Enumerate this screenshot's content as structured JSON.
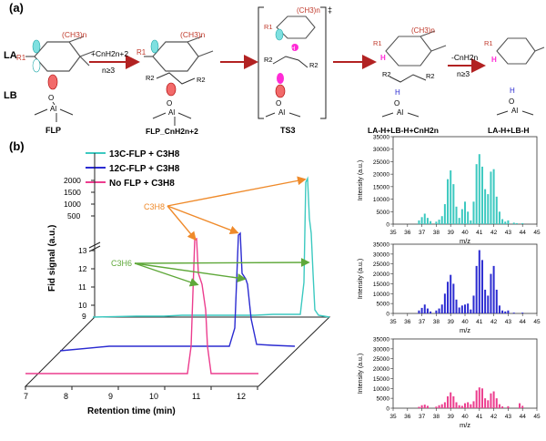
{
  "panel_a": {
    "label": "(a)",
    "row_labels": {
      "la": "LA",
      "lb": "LB"
    },
    "ring_substituent": "(CH3)n",
    "r1": "R1",
    "arrows": {
      "step1_top": "+CnH2n+2",
      "step1_bottom": "n≥3",
      "step4_top": "-CnH2n",
      "step4_bottom": "n≥3"
    },
    "species_labels": {
      "s1": "FLP",
      "s2": "FLP_CnH2n+2",
      "s3": "TS3",
      "s4": "LA-H+LB-H+CnH2n",
      "s5": "LA-H+LB-H"
    },
    "ts_dagger": "‡",
    "atoms": {
      "al": "Al",
      "o": "O",
      "h": "H",
      "c": "C",
      "r2": "R2",
      "plus": "⊕",
      "minus": "⊖"
    }
  },
  "panel_b": {
    "label": "(b)",
    "gc": {
      "legend": [
        {
          "text": "13C-FLP + C3H8",
          "color": "#3cc9c0"
        },
        {
          "text": "12C-FLP + C3H8",
          "color": "#2b2bd1"
        },
        {
          "text": "No FLP + C3H8",
          "color": "#ec3d8e"
        }
      ],
      "ylabel": "Fid signal (a.u.)",
      "xlabel": "Retention time (min)",
      "y_ticks_upper": [
        "2000",
        "1500",
        "1000",
        "500"
      ],
      "y_ticks_lower": [
        "13",
        "12",
        "11",
        "10",
        "9"
      ],
      "x_ticks": [
        "7",
        "8",
        "9",
        "10",
        "11",
        "12"
      ],
      "annotations": {
        "propane": "C3H8",
        "propene": "C3H6"
      },
      "annotation_colors": {
        "propane": "#ef8a2a",
        "propene": "#5fa83a"
      }
    },
    "chart_data": [
      {
        "type": "bar",
        "series": [
          {
            "name": "13C-FLP + C3H8",
            "color": "#3cc9c0",
            "x": [
              36.8,
              37.0,
              37.2,
              37.4,
              37.6,
              38.0,
              38.2,
              38.4,
              38.6,
              38.8,
              39.0,
              39.2,
              39.4,
              39.6,
              39.8,
              40.0,
              40.2,
              40.4,
              40.6,
              40.8,
              41.0,
              41.2,
              41.4,
              41.6,
              41.8,
              42.0,
              42.2,
              42.4,
              42.6,
              42.8,
              43.0,
              43.4,
              43.6,
              44.0
            ],
            "y": [
              1500,
              2800,
              4200,
              2500,
              1200,
              1000,
              1800,
              3200,
              8000,
              18000,
              21500,
              16000,
              7000,
              2500,
              6000,
              9000,
              5000,
              1500,
              9000,
              24000,
              28000,
              23000,
              14000,
              12000,
              21000,
              22000,
              11000,
              5000,
              2000,
              1000,
              1500,
              600,
              400,
              400
            ]
          }
        ],
        "x_ticks": [
          35,
          36,
          37,
          38,
          39,
          40,
          41,
          42,
          43,
          44,
          45
        ],
        "y_ticks": [
          0,
          5000,
          10000,
          15000,
          20000,
          25000,
          30000,
          35000
        ],
        "xlabel": "m/z",
        "ylabel": "Intensity (a.u.)",
        "xlim": [
          35,
          45
        ],
        "ylim": [
          0,
          35000
        ]
      },
      {
        "type": "bar",
        "series": [
          {
            "name": "12C-FLP + C3H8",
            "color": "#2b2bd1",
            "x": [
              36.8,
              37.0,
              37.2,
              37.4,
              37.6,
              38.0,
              38.2,
              38.4,
              38.6,
              38.8,
              39.0,
              39.2,
              39.4,
              39.6,
              39.8,
              40.0,
              40.2,
              40.4,
              40.6,
              40.8,
              41.0,
              41.2,
              41.4,
              41.6,
              41.8,
              42.0,
              42.2,
              42.4,
              42.6,
              42.8,
              43.0,
              43.4,
              44.0
            ],
            "y": [
              1500,
              2800,
              4500,
              2500,
              1000,
              1500,
              2500,
              4500,
              10000,
              16000,
              19500,
              15000,
              7000,
              3000,
              4000,
              4500,
              5000,
              2000,
              9000,
              24000,
              32000,
              27000,
              12000,
              9000,
              20000,
              24000,
              12000,
              4000,
              1500,
              1000,
              1500,
              400,
              400
            ]
          }
        ],
        "x_ticks": [
          35,
          36,
          37,
          38,
          39,
          40,
          41,
          42,
          43,
          44,
          45
        ],
        "y_ticks": [
          0,
          5000,
          10000,
          15000,
          20000,
          25000,
          30000,
          35000
        ],
        "xlabel": "m/z",
        "ylabel": "Intensity (a.u.)",
        "xlim": [
          35,
          45
        ],
        "ylim": [
          0,
          35000
        ]
      },
      {
        "type": "bar",
        "series": [
          {
            "name": "No FLP + C3H8",
            "color": "#ec3d8e",
            "x": [
              36.8,
              37.0,
              37.2,
              37.4,
              38.0,
              38.2,
              38.4,
              38.6,
              38.8,
              39.0,
              39.2,
              39.4,
              39.6,
              39.8,
              40.0,
              40.2,
              40.4,
              40.6,
              40.8,
              41.0,
              41.2,
              41.4,
              41.6,
              41.8,
              42.0,
              42.2,
              42.4,
              42.6,
              43.0,
              43.8,
              44.0
            ],
            "y": [
              700,
              1500,
              1800,
              1200,
              800,
              1500,
              2000,
              3000,
              6000,
              8000,
              6000,
              3000,
              1500,
              1200,
              2500,
              3000,
              2000,
              3500,
              9000,
              10500,
              10000,
              5000,
              4000,
              7500,
              8500,
              5000,
              2000,
              900,
              1000,
              2500,
              1200
            ]
          }
        ],
        "x_ticks": [
          35,
          36,
          37,
          38,
          39,
          40,
          41,
          42,
          43,
          44,
          45
        ],
        "y_ticks": [
          0,
          5000,
          10000,
          15000,
          20000,
          25000,
          30000,
          35000
        ],
        "xlabel": "m/z",
        "ylabel": "Intensity (a.u.)",
        "xlim": [
          35,
          45
        ],
        "ylim": [
          0,
          35000
        ]
      }
    ]
  }
}
